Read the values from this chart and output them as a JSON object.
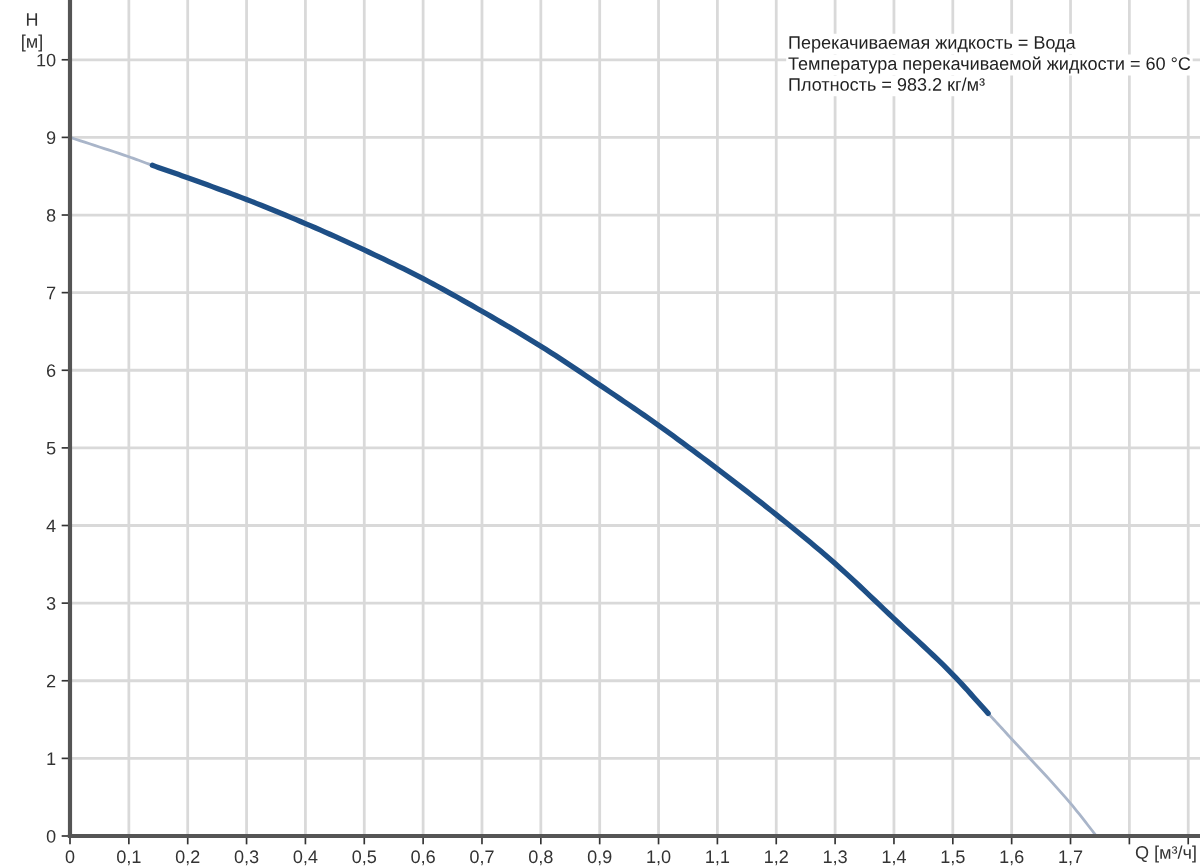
{
  "chart_data": {
    "type": "line",
    "xlabel": "Q [м³/ч]",
    "ylabel": "H\n[м]",
    "series": [
      {
        "color": "#a9b5c9",
        "x": [
          0,
          0.1,
          0.14
        ],
        "values": [
          9.0,
          8.75,
          8.64
        ]
      },
      {
        "color": "#1e4f86",
        "x": [
          0.14,
          0.2,
          0.3,
          0.4,
          0.5,
          0.6,
          0.7,
          0.8,
          0.9,
          1.0,
          1.1,
          1.2,
          1.3,
          1.4,
          1.5,
          1.56
        ],
        "values": [
          8.64,
          8.48,
          8.2,
          7.89,
          7.55,
          7.18,
          6.76,
          6.31,
          5.81,
          5.29,
          4.73,
          4.14,
          3.51,
          2.8,
          2.08,
          1.58
        ]
      },
      {
        "color": "#a9b5c9",
        "x": [
          1.56,
          1.6,
          1.7,
          1.744
        ],
        "values": [
          1.58,
          1.25,
          0.42,
          0
        ]
      }
    ],
    "xlim": [
      0,
      1.92
    ],
    "ylim": [
      0,
      10.77
    ],
    "xticks": [
      0,
      {
        "value": 0.1,
        "label": "0,1"
      },
      {
        "value": 0.2,
        "label": "0,2"
      },
      {
        "value": 0.3,
        "label": "0,3"
      },
      {
        "value": 0.4,
        "label": "0,4"
      },
      {
        "value": 0.5,
        "label": "0,5"
      },
      {
        "value": 0.6,
        "label": "0,6"
      },
      {
        "value": 0.7,
        "label": "0,7"
      },
      {
        "value": 0.8,
        "label": "0,8"
      },
      {
        "value": 0.9,
        "label": "0,9"
      },
      {
        "value": 1.0,
        "label": "1,0"
      },
      {
        "value": 1.1,
        "label": "1,1"
      },
      {
        "value": 1.2,
        "label": "1,2"
      },
      {
        "value": 1.3,
        "label": "1,3"
      },
      {
        "value": 1.4,
        "label": "1,4"
      },
      {
        "value": 1.5,
        "label": "1,5"
      },
      {
        "value": 1.6,
        "label": "1,6"
      },
      {
        "value": 1.7,
        "label": "1,7"
      },
      {
        "value": 1.8,
        "label": null
      },
      {
        "value": 1.9,
        "label": null
      }
    ],
    "yticks": [
      0,
      1,
      2,
      3,
      4,
      5,
      6,
      7,
      8,
      9,
      10
    ],
    "grid": true,
    "marker": "none",
    "line_style": "solid",
    "annotations": [
      "Перекачиваемая жидкость = Вода",
      "Температура перекачиваемой жидкости = 60 °C",
      "Плотность = 983.2 кг/м³"
    ]
  }
}
